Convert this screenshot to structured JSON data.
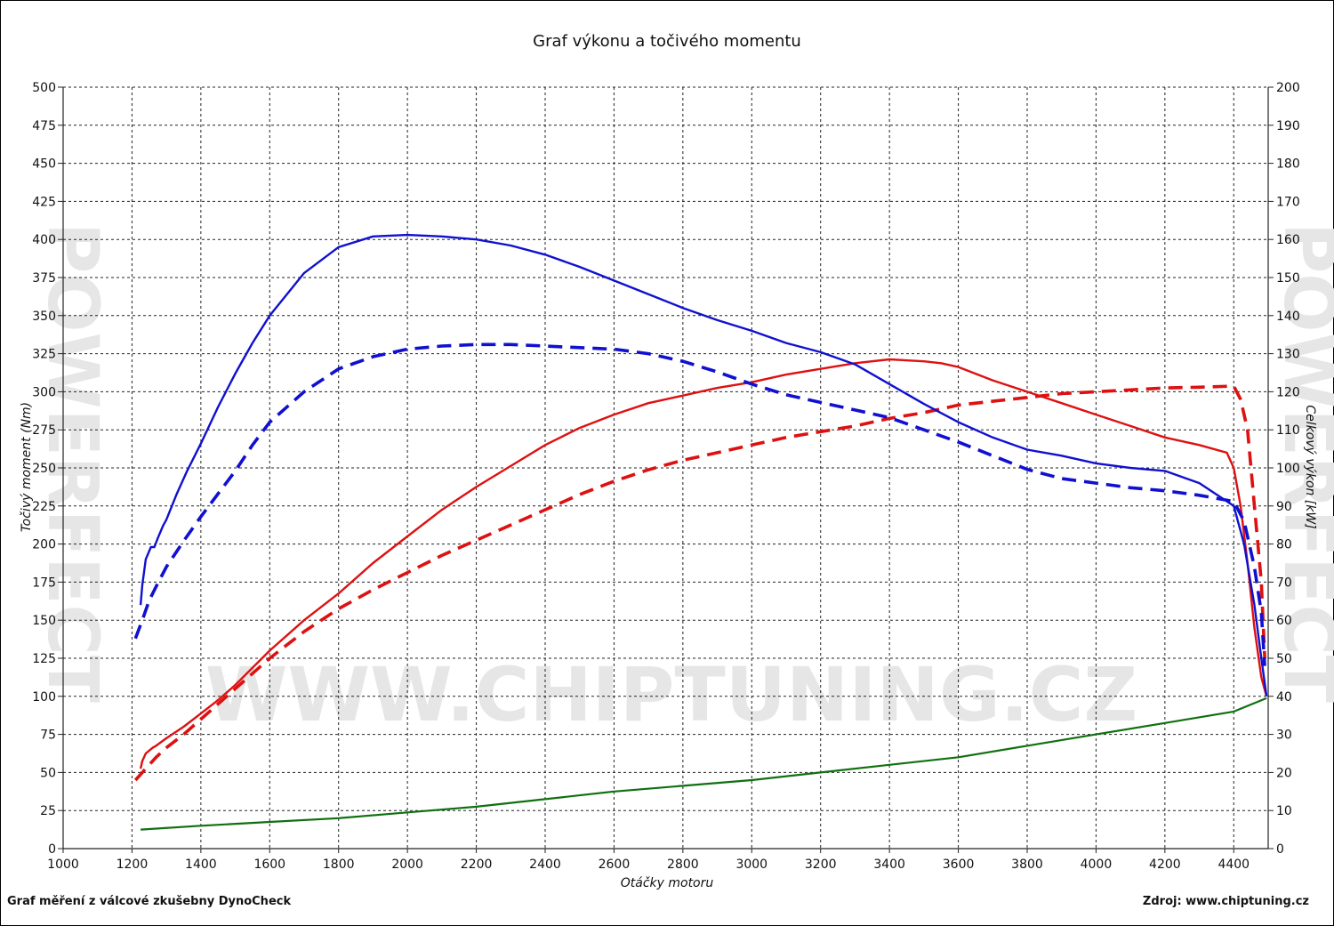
{
  "page": {
    "title": "Graf výkonu a točivého momentu",
    "footer_left": "Graf měření z válcové zkušebny DynoCheck",
    "footer_right": "Zdroj: www.chiptuning.cz",
    "watermark_text": "WWW.CHIPTUNING.CZ",
    "side_watermark": "POWERFECT"
  },
  "chart_data": {
    "type": "line",
    "title": "Graf výkonu a točivého momentu",
    "xlabel": "Otáčky motoru",
    "ylabel": "Točivý moment (Nm)",
    "y2label": "Celkový výkon [kW]",
    "xlim": [
      1000,
      4500
    ],
    "ylim": [
      0,
      500
    ],
    "y2lim": [
      0,
      200
    ],
    "x_ticks": [
      1000,
      1200,
      1400,
      1600,
      1800,
      2000,
      2200,
      2400,
      2600,
      2800,
      3000,
      3200,
      3400,
      3600,
      3800,
      4000,
      4200,
      4400
    ],
    "y_ticks": [
      0,
      25,
      50,
      75,
      100,
      125,
      150,
      175,
      200,
      225,
      250,
      275,
      300,
      325,
      350,
      375,
      400,
      425,
      450,
      475,
      500
    ],
    "y2_ticks": [
      0,
      10,
      20,
      30,
      40,
      50,
      60,
      70,
      80,
      90,
      100,
      110,
      120,
      130,
      140,
      150,
      160,
      170,
      180,
      190,
      200
    ],
    "grid": true,
    "colors": {
      "torque": "#1010d0",
      "power": "#dd1111",
      "loss": "#107010"
    },
    "series": [
      {
        "key": "torque_tuned",
        "axis": "left",
        "style": "solid",
        "color": "#1010d0",
        "x": [
          1225,
          1230,
          1240,
          1255,
          1265,
          1275,
          1290,
          1300,
          1330,
          1360,
          1400,
          1450,
          1500,
          1550,
          1600,
          1700,
          1800,
          1900,
          2000,
          2100,
          2200,
          2300,
          2400,
          2500,
          2600,
          2700,
          2800,
          2900,
          3000,
          3100,
          3200,
          3300,
          3400,
          3500,
          3600,
          3700,
          3800,
          3900,
          4000,
          4100,
          4200,
          4300,
          4400,
          4430,
          4460,
          4480,
          4495
        ],
        "y": [
          160,
          173,
          190,
          198,
          198,
          204,
          212,
          216,
          233,
          248,
          266,
          290,
          312,
          332,
          350,
          378,
          395,
          402,
          403,
          402,
          400,
          396,
          390,
          382,
          373,
          364,
          355,
          347,
          340,
          332,
          326,
          318,
          305,
          292,
          280,
          270,
          262,
          258,
          253,
          250,
          248,
          240,
          225,
          200,
          160,
          125,
          100
        ]
      },
      {
        "key": "torque_stock",
        "axis": "left",
        "style": "dashed",
        "color": "#1010d0",
        "x": [
          1210,
          1230,
          1250,
          1270,
          1300,
          1350,
          1400,
          1450,
          1500,
          1550,
          1600,
          1700,
          1800,
          1900,
          2000,
          2100,
          2200,
          2300,
          2400,
          2500,
          2600,
          2700,
          2800,
          2900,
          3000,
          3100,
          3200,
          3300,
          3400,
          3500,
          3600,
          3700,
          3800,
          3900,
          4000,
          4100,
          4200,
          4300,
          4400,
          4430,
          4460,
          4480,
          4490
        ],
        "y": [
          138,
          150,
          163,
          172,
          185,
          202,
          218,
          233,
          248,
          265,
          280,
          300,
          315,
          323,
          328,
          330,
          331,
          331,
          330,
          329,
          328,
          325,
          320,
          313,
          305,
          298,
          293,
          288,
          283,
          275,
          267,
          258,
          249,
          243,
          240,
          237,
          235,
          232,
          228,
          215,
          185,
          155,
          120
        ]
      },
      {
        "key": "power_tuned",
        "axis": "right",
        "style": "solid",
        "color": "#dd1111",
        "x": [
          1225,
          1230,
          1240,
          1260,
          1270,
          1300,
          1350,
          1400,
          1450,
          1500,
          1600,
          1700,
          1800,
          1900,
          2000,
          2100,
          2200,
          2300,
          2400,
          2500,
          2600,
          2700,
          2800,
          2900,
          3000,
          3100,
          3200,
          3300,
          3400,
          3500,
          3550,
          3600,
          3700,
          3800,
          3900,
          4000,
          4100,
          4200,
          4300,
          4380,
          4400,
          4420,
          4440,
          4460,
          4480,
          4495
        ],
        "y": [
          21,
          23,
          25,
          26.5,
          27,
          29,
          32,
          35.5,
          39,
          43,
          52,
          60,
          67,
          75,
          82,
          89,
          95,
          100.5,
          106,
          110.5,
          114,
          117,
          119,
          121,
          122.5,
          124.5,
          126,
          127.5,
          128.5,
          128,
          127.5,
          126.5,
          123,
          120,
          117,
          114,
          111,
          108,
          106,
          104,
          100,
          90,
          75,
          58,
          45,
          40
        ]
      },
      {
        "key": "power_stock",
        "axis": "right",
        "style": "dashed",
        "color": "#dd1111",
        "x": [
          1210,
          1230,
          1250,
          1270,
          1300,
          1350,
          1400,
          1450,
          1500,
          1600,
          1700,
          1800,
          1900,
          2000,
          2100,
          2200,
          2300,
          2400,
          2500,
          2600,
          2700,
          2800,
          2900,
          3000,
          3100,
          3200,
          3300,
          3400,
          3500,
          3600,
          3700,
          3800,
          3900,
          4000,
          4100,
          4200,
          4300,
          4400,
          4420,
          4440,
          4460,
          4480,
          4490
        ],
        "y": [
          18,
          20,
          22,
          24,
          26.5,
          30,
          34,
          38,
          42,
          50,
          57,
          63,
          68,
          72.5,
          77,
          81,
          85,
          89,
          93,
          96.5,
          99.5,
          102,
          104,
          106,
          108,
          109.5,
          111,
          113,
          114.5,
          116.5,
          117.5,
          118.5,
          119.5,
          120,
          120.5,
          121,
          121.2,
          121.5,
          118,
          110,
          90,
          70,
          50
        ]
      },
      {
        "key": "power_loss",
        "axis": "right",
        "style": "solid",
        "color": "#107010",
        "x": [
          1225,
          1400,
          1600,
          1800,
          2000,
          2200,
          2400,
          2600,
          2800,
          3000,
          3200,
          3400,
          3600,
          3800,
          4000,
          4200,
          4400,
          4495
        ],
        "y": [
          5,
          6,
          7,
          8,
          9.5,
          11,
          13,
          15,
          16.5,
          18,
          20,
          22,
          24,
          27,
          30,
          33,
          36,
          39.5
        ]
      }
    ]
  }
}
